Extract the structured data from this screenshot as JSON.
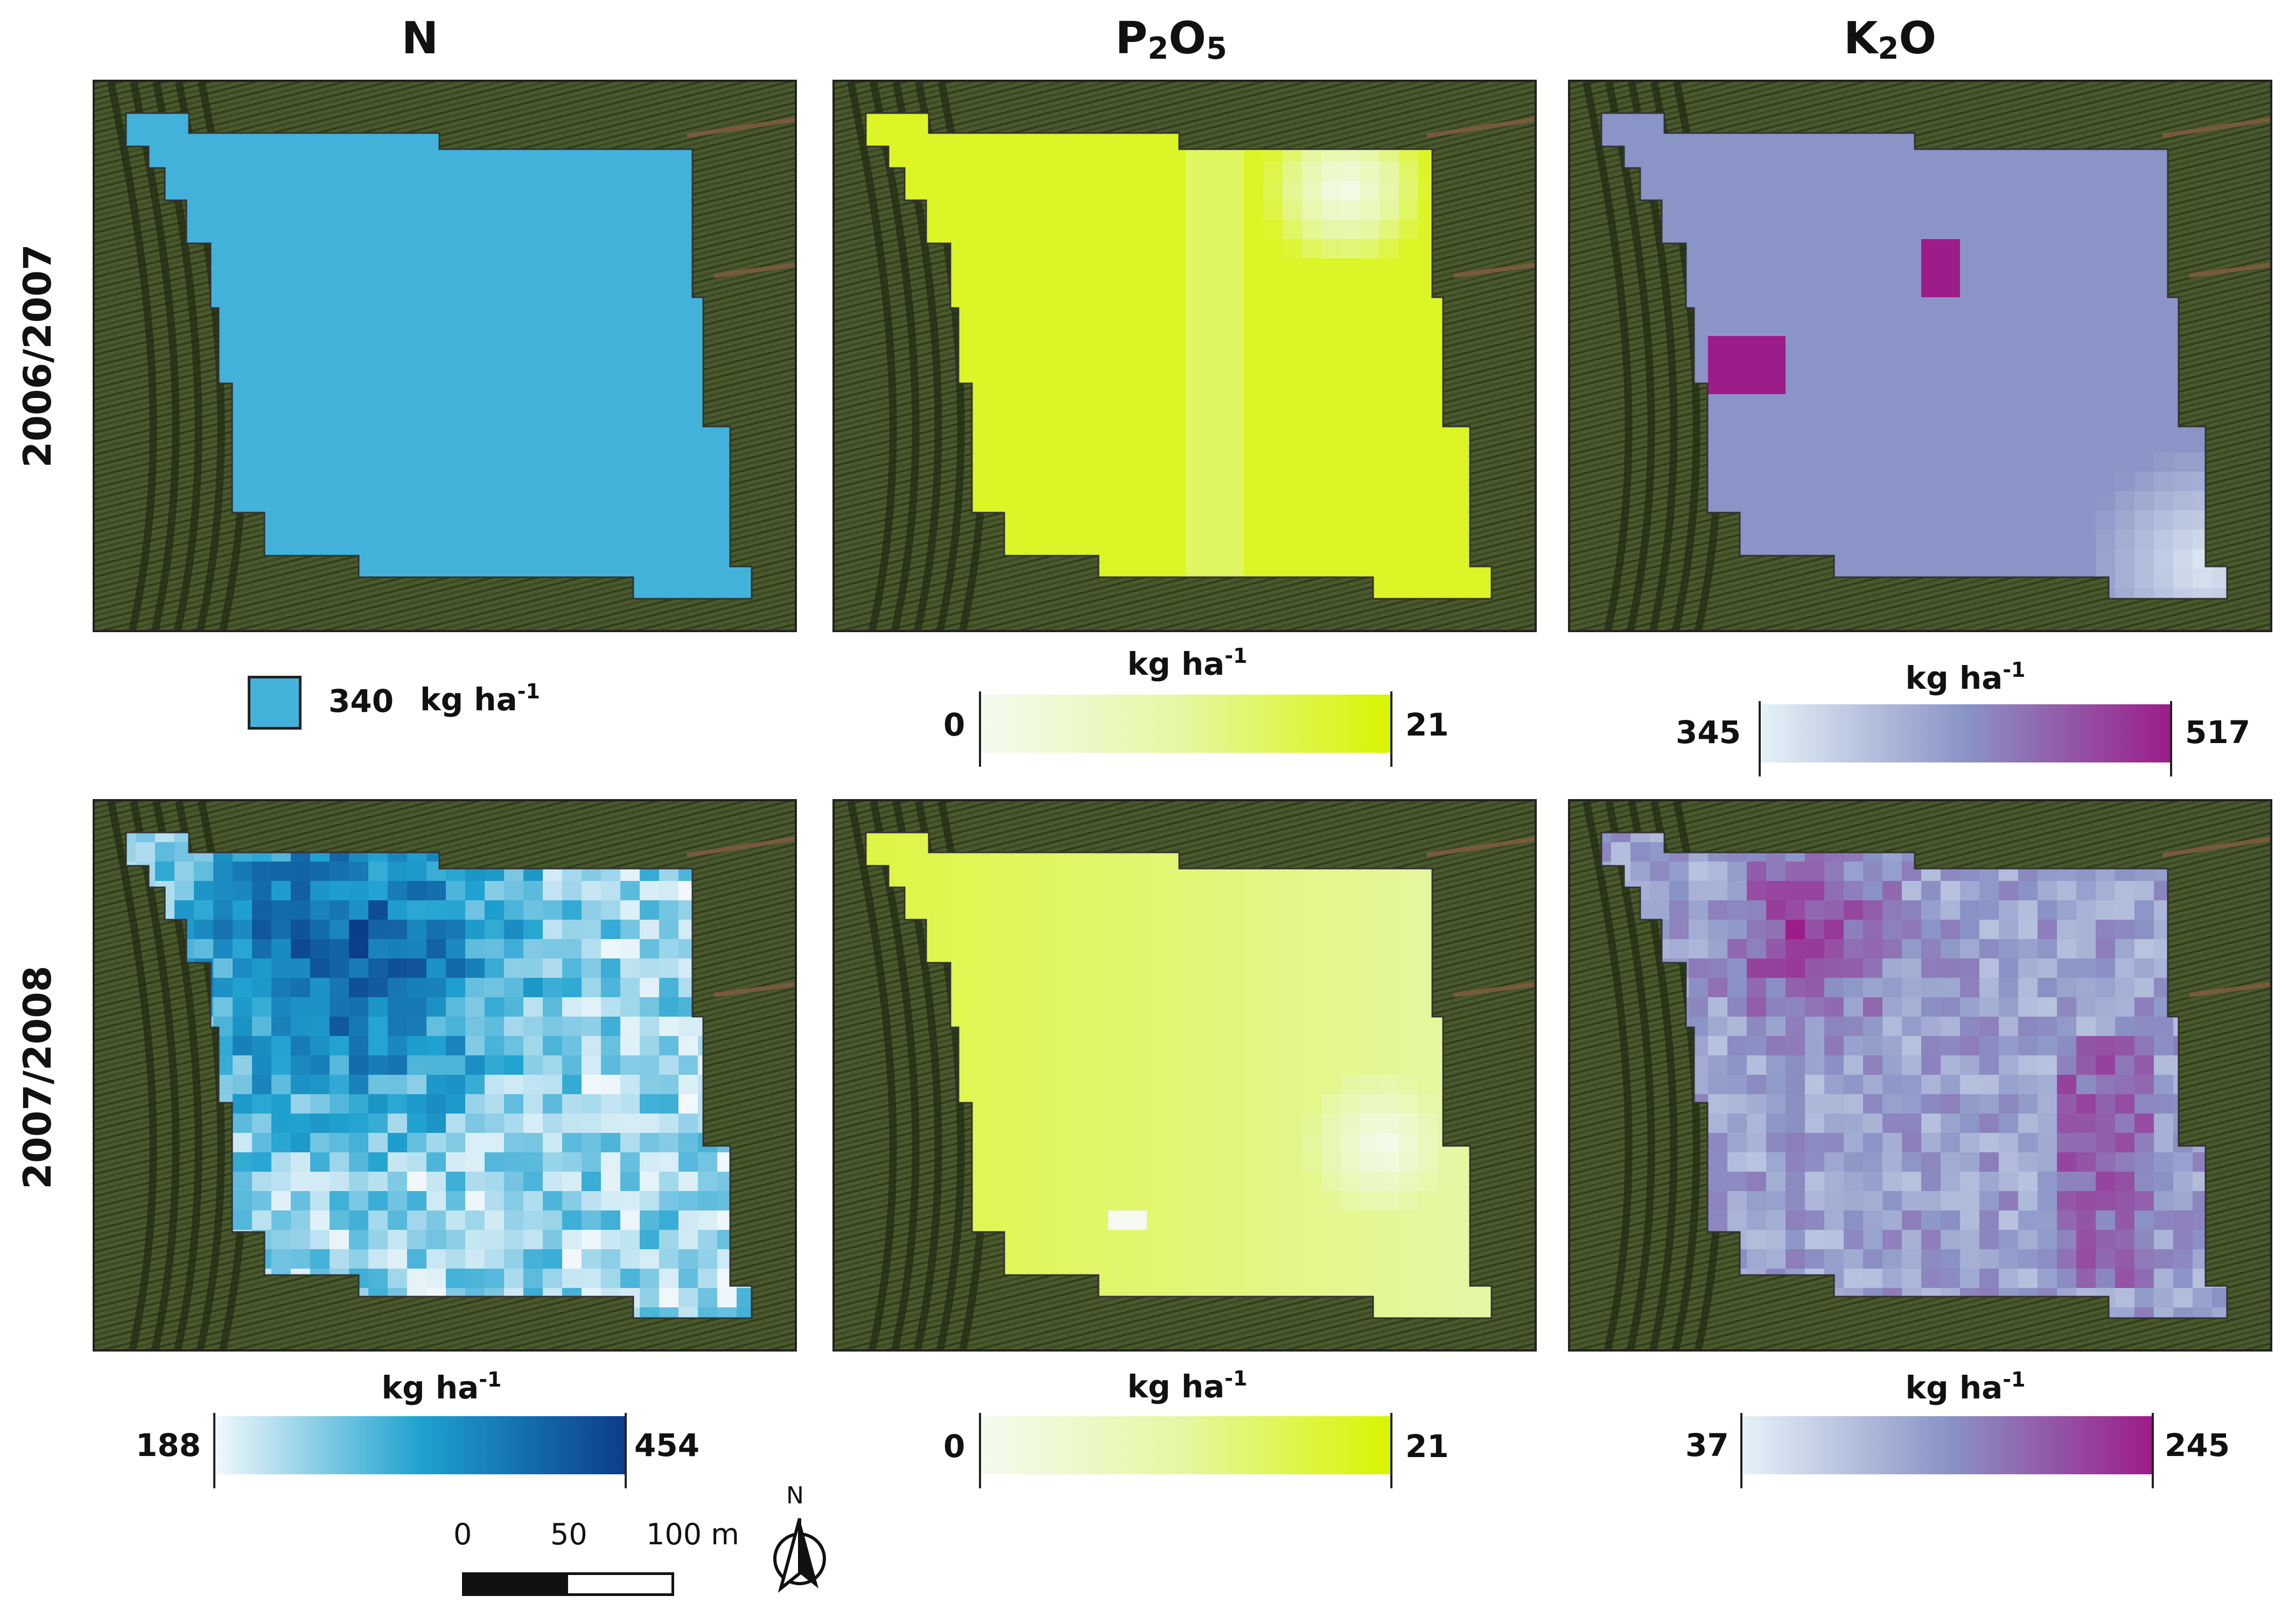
{
  "columns": {
    "n": {
      "label": "N"
    },
    "p": {
      "base1": "P",
      "sub1": "2",
      "base2": "O",
      "sub2": "5"
    },
    "k": {
      "base1": "K",
      "sub1": "2",
      "base2": "O"
    }
  },
  "rows": {
    "row1": "2006/2007",
    "row2": "2007/2008"
  },
  "units": {
    "base": "kg ha",
    "sup": "-1"
  },
  "legends": {
    "n_2006": {
      "value": "340",
      "color": "#43B2DB"
    },
    "p_2006": {
      "min": "0",
      "max": "21",
      "colors": [
        "#F4FAF0",
        "#E5F7A0",
        "#D9F400"
      ]
    },
    "k_2006": {
      "min": "345",
      "max": "517",
      "colors": [
        "#E6F2F8",
        "#8A94C6",
        "#9C1C89"
      ]
    },
    "n_2008": {
      "min": "188",
      "max": "454",
      "colors": [
        "#F2F8FC",
        "#1FA2D0",
        "#0B3D8A"
      ]
    },
    "p_2008": {
      "min": "0",
      "max": "21",
      "colors": [
        "#F4FAF0",
        "#E5F7A0",
        "#D9F400"
      ]
    },
    "k_2008": {
      "min": "37",
      "max": "245",
      "colors": [
        "#E6F2F8",
        "#8A94C6",
        "#9C1C89"
      ]
    }
  },
  "scale_bar": {
    "labels": [
      "0",
      "50",
      "100 m"
    ]
  },
  "north_arrow": {
    "label": "N",
    "icon": "north-arrow-icon"
  }
}
